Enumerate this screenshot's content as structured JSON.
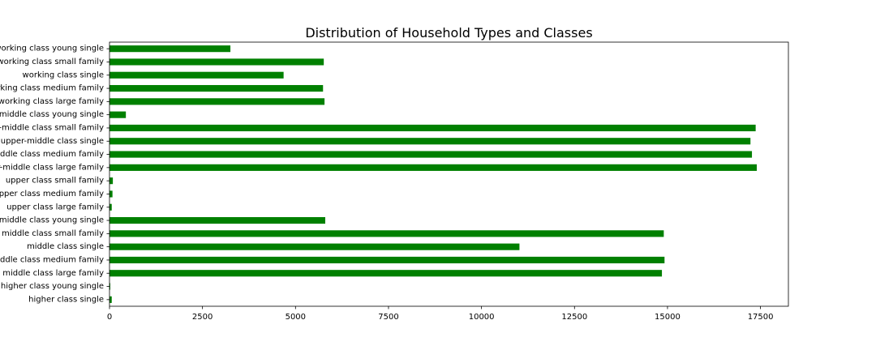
{
  "chart_data": {
    "type": "bar",
    "orientation": "horizontal",
    "title": "Distribution of Household Types and Classes",
    "xlabel": "",
    "ylabel": "",
    "xlim": [
      0,
      18250
    ],
    "xticks": [
      0,
      2500,
      5000,
      7500,
      10000,
      12500,
      15000,
      17500
    ],
    "xtick_labels": [
      "0",
      "2500",
      "5000",
      "7500",
      "10000",
      "12500",
      "15000",
      "17500"
    ],
    "grid": false,
    "bar_color": "#008000",
    "categories": [
      "working class young single",
      "working class small family",
      "working class single",
      "working class medium family",
      "working class large family",
      "upper-middle class young single",
      "upper-middle class small family",
      "upper-middle class single",
      "upper-middle class medium family",
      "upper-middle class large family",
      "upper class small family",
      "upper class medium family",
      "upper class large family",
      "middle class young single",
      "middle class small family",
      "middle class single",
      "middle class medium family",
      "middle class large family",
      "higher class young single",
      "higher class single"
    ],
    "values": [
      3250,
      5760,
      4680,
      5740,
      5780,
      440,
      17370,
      17230,
      17270,
      17400,
      90,
      80,
      60,
      5800,
      14900,
      11020,
      14920,
      14850,
      20,
      60
    ]
  }
}
